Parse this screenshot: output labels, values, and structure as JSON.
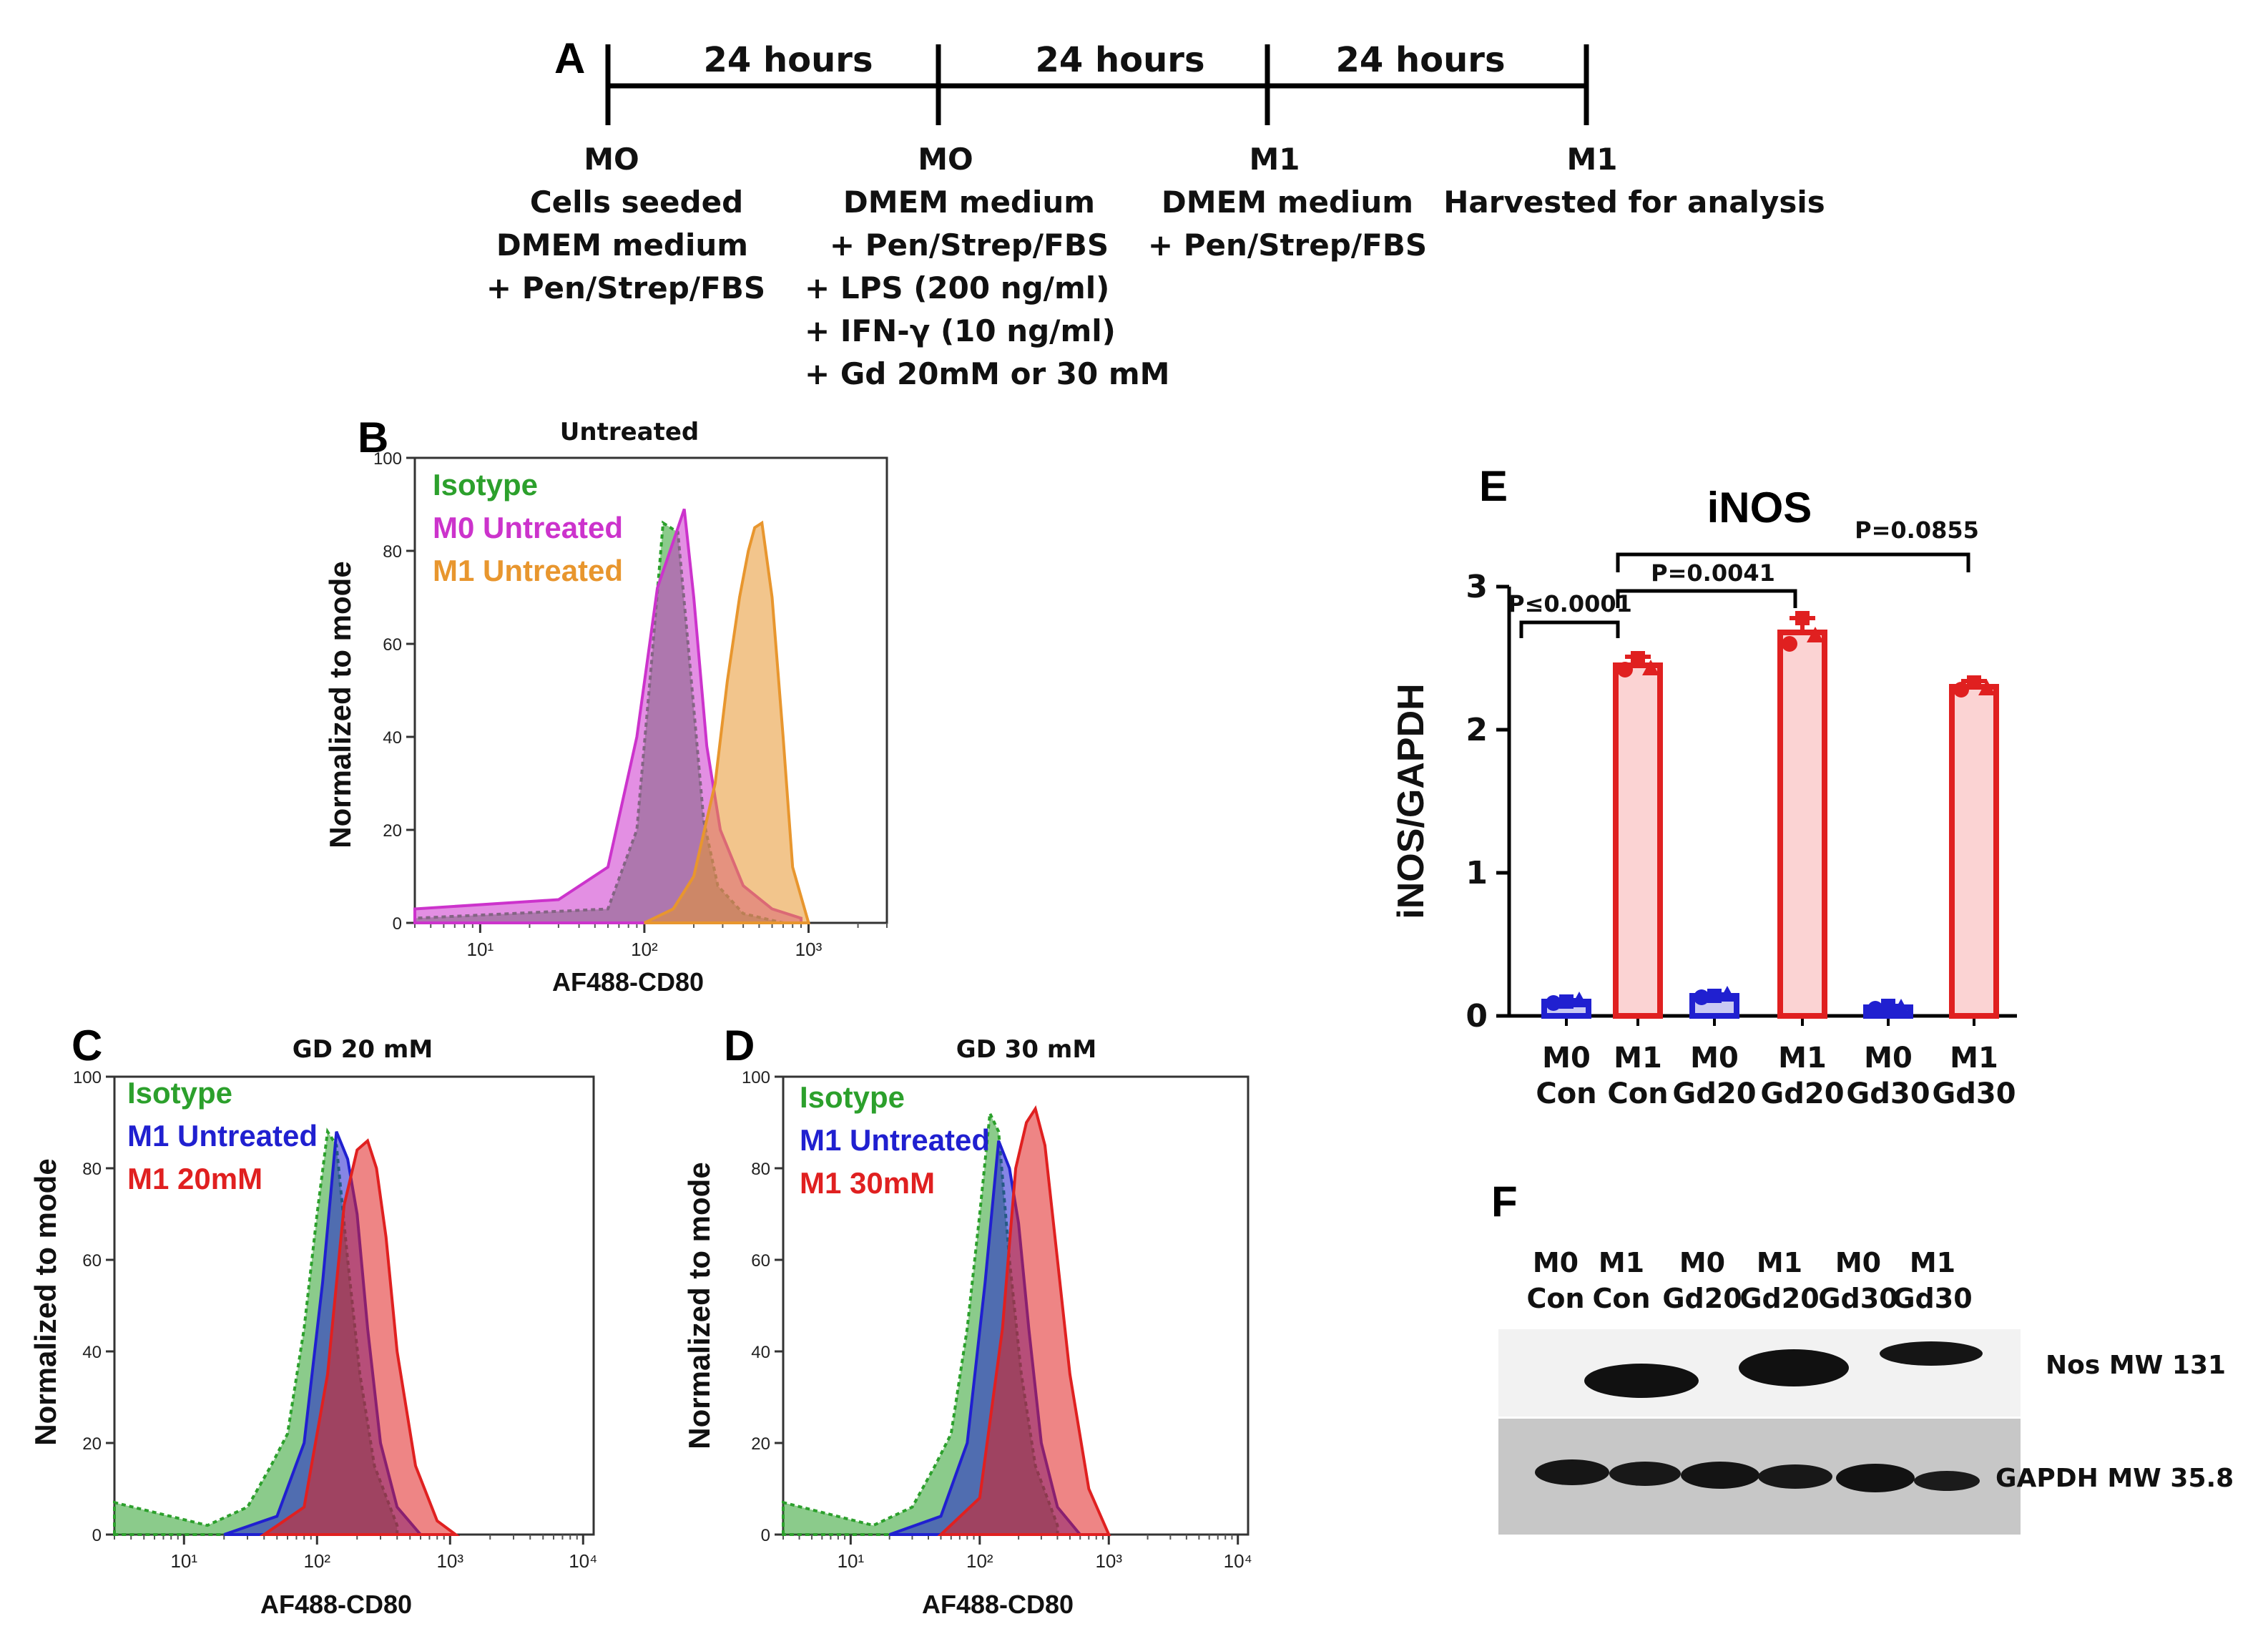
{
  "colors": {
    "green": "#2ca02c",
    "magenta": "#cc33cc",
    "orange": "#e8962e",
    "blue": "#2020d0",
    "red": "#e02020",
    "pink": "#fbd3d3"
  },
  "panels": {
    "a": {
      "letter": "A",
      "intervals": [
        "24 hours",
        "24 hours",
        "24 hours"
      ],
      "stages": [
        {
          "label": "MO",
          "lines": [
            "Cells seeded",
            "DMEM medium",
            "+ Pen/Strep/FBS"
          ]
        },
        {
          "label": "MO",
          "lines": [
            "DMEM medium",
            "+ Pen/Strep/FBS",
            "+ LPS (200 ng/ml)",
            "+ IFN-γ  (10 ng/ml)",
            "+ Gd 20mM or 30 mM"
          ]
        },
        {
          "label": "M1",
          "lines": [
            "DMEM medium",
            "+ Pen/Strep/FBS"
          ]
        },
        {
          "label": "M1",
          "lines": [
            "Harvested for analysis"
          ]
        }
      ]
    },
    "b": {
      "letter": "B",
      "title": "Untreated",
      "xlabel": "AF488-CD80",
      "ylabel": "Normalized to mode",
      "legend": [
        "Isotype",
        "M0 Untreated",
        "M1 Untreated"
      ]
    },
    "c": {
      "letter": "C",
      "title": "GD 20 mM",
      "xlabel": "AF488-CD80",
      "ylabel": "Normalized to mode",
      "legend": [
        "Isotype",
        "M1 Untreated",
        "M1 20mM"
      ]
    },
    "d": {
      "letter": "D",
      "title": "GD 30 mM",
      "xlabel": "AF488-CD80",
      "ylabel": "Normalized to mode",
      "legend": [
        "Isotype",
        "M1 Untreated",
        "M1 30mM"
      ]
    },
    "e": {
      "letter": "E",
      "title": "iNOS",
      "ylabel": "iNOS/GAPDH",
      "categories": [
        [
          "M0",
          "Con"
        ],
        [
          "M1",
          "Con"
        ],
        [
          "M0",
          "Gd20"
        ],
        [
          "M1",
          "Gd20"
        ],
        [
          "M0",
          "Gd30"
        ],
        [
          "M1",
          "Gd30"
        ]
      ],
      "pvalues": [
        "P≤0.0001",
        "P=0.0041",
        "P=0.0855"
      ]
    },
    "f": {
      "letter": "F",
      "lanes": [
        [
          "M0",
          "Con"
        ],
        [
          "M1",
          "Con"
        ],
        [
          "M0",
          "Gd20"
        ],
        [
          "M1",
          "Gd20"
        ],
        [
          "M0",
          "Gd30"
        ],
        [
          "M1",
          "Gd30"
        ]
      ],
      "rows": [
        "Nos MW 131",
        "GAPDH MW 35.8"
      ]
    }
  },
  "chart_data": [
    {
      "id": "B",
      "type": "area",
      "title": "Untreated",
      "xlabel": "AF488-CD80",
      "ylabel": "Normalized to mode",
      "xscale": "log",
      "xlim": [
        4,
        3000
      ],
      "ylim": [
        0,
        100
      ],
      "yticks": [
        0,
        20,
        40,
        60,
        80,
        100
      ],
      "xticks": [
        10,
        100,
        1000
      ],
      "xtick_labels": [
        "10¹",
        "10²",
        "10³"
      ],
      "series": [
        {
          "name": "Isotype",
          "color": "#2ca02c",
          "dotted": true,
          "x": [
            4,
            60,
            90,
            110,
            130,
            160,
            190,
            230,
            280,
            400,
            700
          ],
          "y": [
            1,
            3,
            20,
            55,
            86,
            84,
            55,
            22,
            8,
            2,
            0
          ]
        },
        {
          "name": "M0 Untreated",
          "color": "#cc33cc",
          "x": [
            4,
            30,
            60,
            90,
            120,
            150,
            175,
            200,
            240,
            290,
            400,
            600,
            900
          ],
          "y": [
            3,
            5,
            12,
            40,
            72,
            82,
            89,
            70,
            38,
            20,
            8,
            3,
            1
          ]
        },
        {
          "name": "M1 Untreated",
          "color": "#e8962e",
          "x": [
            100,
            150,
            200,
            270,
            320,
            380,
            430,
            470,
            520,
            600,
            700,
            800,
            1000
          ],
          "y": [
            0,
            3,
            10,
            30,
            52,
            70,
            80,
            85,
            86,
            70,
            40,
            12,
            0
          ]
        }
      ]
    },
    {
      "id": "C",
      "type": "area",
      "title": "GD 20 mM",
      "xlabel": "AF488-CD80",
      "ylabel": "Normalized to mode",
      "xscale": "log",
      "xlim": [
        3,
        12000
      ],
      "ylim": [
        0,
        100
      ],
      "yticks": [
        0,
        20,
        40,
        60,
        80,
        100
      ],
      "xticks": [
        10,
        100,
        1000,
        10000
      ],
      "xtick_labels": [
        "10¹",
        "10²",
        "10³",
        "10⁴"
      ],
      "series": [
        {
          "name": "Isotype",
          "color": "#2ca02c",
          "dotted": true,
          "x": [
            3,
            15,
            30,
            45,
            60,
            80,
            100,
            120,
            140,
            170,
            210,
            270,
            400
          ],
          "y": [
            7,
            2,
            6,
            15,
            22,
            45,
            70,
            88,
            85,
            60,
            35,
            15,
            2
          ]
        },
        {
          "name": "M1 Untreated",
          "color": "#2020d0",
          "x": [
            20,
            50,
            80,
            110,
            140,
            170,
            200,
            240,
            300,
            400,
            600
          ],
          "y": [
            0,
            4,
            20,
            55,
            88,
            82,
            70,
            45,
            20,
            6,
            0
          ]
        },
        {
          "name": "M1 20mM",
          "color": "#e02020",
          "x": [
            40,
            80,
            120,
            160,
            200,
            240,
            280,
            330,
            400,
            550,
            800,
            1100
          ],
          "y": [
            0,
            6,
            35,
            72,
            84,
            86,
            80,
            65,
            40,
            15,
            3,
            0
          ]
        }
      ]
    },
    {
      "id": "D",
      "type": "area",
      "title": "GD 30 mM",
      "xlabel": "AF488-CD80",
      "ylabel": "Normalized to mode",
      "xscale": "log",
      "xlim": [
        3,
        12000
      ],
      "ylim": [
        0,
        100
      ],
      "yticks": [
        0,
        20,
        40,
        60,
        80,
        100
      ],
      "xticks": [
        10,
        100,
        1000,
        10000
      ],
      "xtick_labels": [
        "10¹",
        "10²",
        "10³",
        "10⁴"
      ],
      "series": [
        {
          "name": "Isotype",
          "color": "#2ca02c",
          "dotted": true,
          "x": [
            3,
            15,
            30,
            45,
            60,
            80,
            100,
            120,
            140,
            170,
            210,
            270,
            400
          ],
          "y": [
            7,
            2,
            6,
            15,
            22,
            45,
            70,
            92,
            88,
            60,
            35,
            15,
            2
          ]
        },
        {
          "name": "M1 Untreated",
          "color": "#2020d0",
          "x": [
            20,
            50,
            80,
            110,
            140,
            170,
            200,
            240,
            300,
            400,
            600
          ],
          "y": [
            0,
            4,
            20,
            55,
            86,
            80,
            68,
            45,
            20,
            6,
            0
          ]
        },
        {
          "name": "M1 30mM",
          "color": "#e02020",
          "x": [
            50,
            100,
            150,
            190,
            230,
            270,
            320,
            400,
            500,
            700,
            1000
          ],
          "y": [
            0,
            8,
            45,
            80,
            90,
            93,
            85,
            60,
            35,
            10,
            0
          ]
        }
      ]
    },
    {
      "id": "E",
      "type": "bar",
      "title": "iNOS",
      "ylabel": "iNOS/GAPDH",
      "ylim": [
        0,
        3
      ],
      "yticks": [
        0,
        1,
        2,
        3
      ],
      "categories": [
        "M0 Con",
        "M1 Con",
        "M0 Gd20",
        "M1 Gd20",
        "M0 Gd30",
        "M1 Gd30"
      ],
      "values": [
        0.1,
        2.45,
        0.14,
        2.68,
        0.06,
        2.3
      ],
      "errors": [
        0.01,
        0.06,
        0.01,
        0.1,
        0.01,
        0.04
      ],
      "points": [
        [
          0.09,
          0.1,
          0.11
        ],
        [
          2.42,
          2.5,
          2.43
        ],
        [
          0.13,
          0.14,
          0.15
        ],
        [
          2.6,
          2.78,
          2.66
        ],
        [
          0.05,
          0.07,
          0.06
        ],
        [
          2.28,
          2.33,
          2.29
        ]
      ],
      "bar_colors": [
        "#2020d0",
        "#e02020",
        "#2020d0",
        "#e02020",
        "#2020d0",
        "#e02020"
      ],
      "comparisons": [
        {
          "from": "M0 Con",
          "to": "M1 Con",
          "label": "P≤0.0001"
        },
        {
          "from": "M1 Con",
          "to": "M1 Gd20",
          "label": "P=0.0041"
        },
        {
          "from": "M1 Con",
          "to": "M1 Gd30",
          "label": "P=0.0855"
        }
      ]
    }
  ]
}
